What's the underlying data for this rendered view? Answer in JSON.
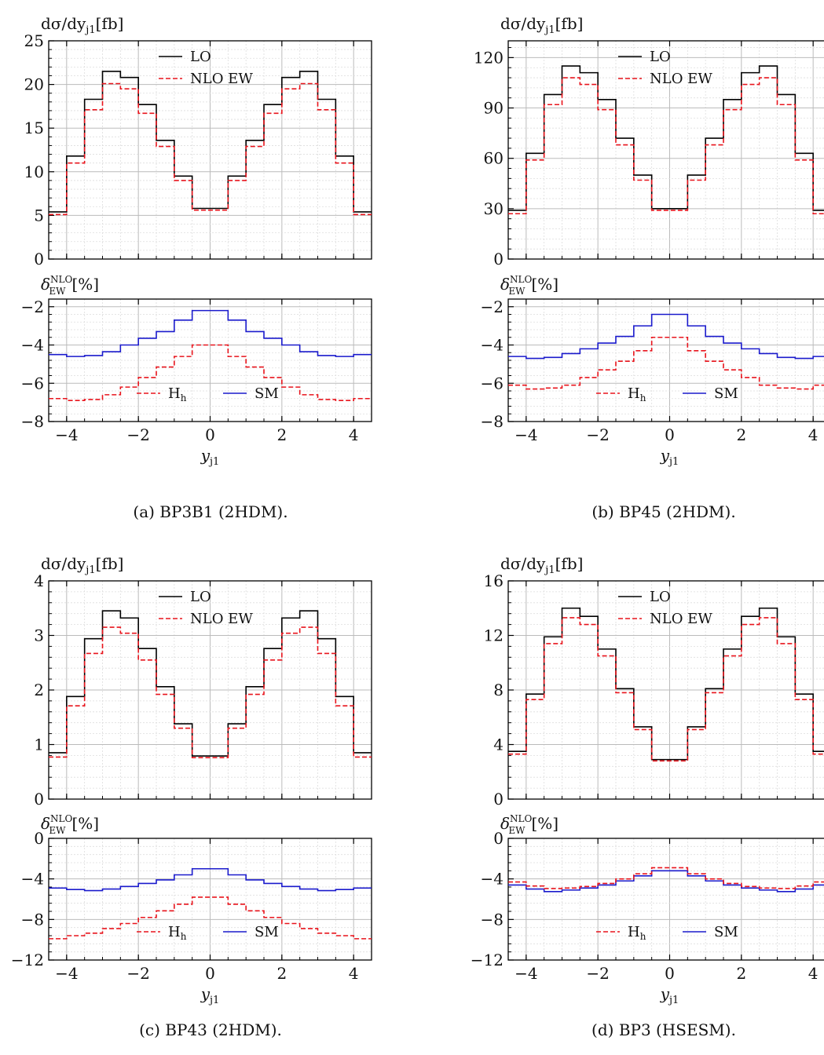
{
  "figure": {
    "upper_ylabel": "dσ/dy",
    "upper_ylabel_sub": "j1",
    "upper_ylabel_unit": "[fb]",
    "lower_ylabel": "δ",
    "lower_ylabel_sup": "NLO",
    "lower_ylabel_sub": "EW",
    "lower_ylabel_unit": "[%]",
    "xlabel": "y",
    "xlabel_sub": "j1",
    "legend_upper": [
      "LO",
      "NLO EW"
    ],
    "legend_lower_h": "H",
    "legend_lower_h_sub": "h",
    "legend_lower_sm": "SM",
    "colors": {
      "lo": "#000000",
      "nlo": "#e8141c",
      "sm": "#1a1acc",
      "hh": "#e8141c"
    }
  },
  "chart_data": [
    {
      "type": "line",
      "panel": "a",
      "caption": "(a) BP3B1 (2HDM).",
      "x_edges": [
        -4.5,
        -4,
        -3.5,
        -3,
        -2.5,
        -2,
        -1.5,
        -1,
        -0.5,
        0.5,
        1,
        1.5,
        2,
        2.5,
        3,
        3.5,
        4,
        4.5
      ],
      "xlim": [
        -4.5,
        4.5
      ],
      "xticks": [
        -4,
        -2,
        0,
        2,
        4
      ],
      "upper": {
        "ylim": [
          0,
          25
        ],
        "yticks": [
          0,
          5,
          10,
          15,
          20,
          25
        ],
        "series": [
          {
            "name": "LO",
            "values": [
              5.4,
              11.8,
              18.3,
              21.5,
              20.8,
              17.7,
              13.6,
              9.5,
              5.8,
              9.5,
              13.6,
              17.7,
              20.8,
              21.5,
              18.3,
              11.8,
              5.4
            ]
          },
          {
            "name": "NLO EW",
            "values": [
              5.1,
              11.0,
              17.1,
              20.1,
              19.5,
              16.7,
              12.9,
              9.0,
              5.6,
              9.0,
              12.9,
              16.7,
              19.5,
              20.1,
              17.1,
              11.0,
              5.1
            ]
          }
        ]
      },
      "lower": {
        "ylim": [
          -8,
          -1.6
        ],
        "yticks": [
          -8,
          -6,
          -4,
          -2
        ],
        "series": [
          {
            "name": "SM",
            "values": [
              -4.5,
              -4.6,
              -4.55,
              -4.35,
              -4.0,
              -3.65,
              -3.3,
              -2.7,
              -2.2,
              -2.7,
              -3.3,
              -3.65,
              -4.0,
              -4.35,
              -4.55,
              -4.6,
              -4.5
            ]
          },
          {
            "name": "H_h",
            "values": [
              -6.8,
              -6.9,
              -6.85,
              -6.6,
              -6.2,
              -5.7,
              -5.15,
              -4.6,
              -4.0,
              -4.6,
              -5.15,
              -5.7,
              -6.2,
              -6.6,
              -6.85,
              -6.9,
              -6.8
            ]
          }
        ]
      }
    },
    {
      "type": "line",
      "panel": "b",
      "caption": "(b) BP45 (2HDM).",
      "x_edges": [
        -4.5,
        -4,
        -3.5,
        -3,
        -2.5,
        -2,
        -1.5,
        -1,
        -0.5,
        0.5,
        1,
        1.5,
        2,
        2.5,
        3,
        3.5,
        4,
        4.5
      ],
      "xlim": [
        -4.5,
        4.5
      ],
      "xticks": [
        -4,
        -2,
        0,
        2,
        4
      ],
      "upper": {
        "ylim": [
          0,
          130
        ],
        "yticks": [
          0,
          30,
          60,
          90,
          120
        ],
        "series": [
          {
            "name": "LO",
            "values": [
              29,
              63,
              98,
              115,
              111,
              95,
              72,
              50,
              30,
              50,
              72,
              95,
              111,
              115,
              98,
              63,
              29
            ]
          },
          {
            "name": "NLO EW",
            "values": [
              27,
              59,
              92,
              108,
              104,
              89,
              68,
              47,
              29,
              47,
              68,
              89,
              104,
              108,
              92,
              59,
              27
            ]
          }
        ]
      },
      "lower": {
        "ylim": [
          -8,
          -1.6
        ],
        "yticks": [
          -8,
          -6,
          -4,
          -2
        ],
        "series": [
          {
            "name": "SM",
            "values": [
              -4.6,
              -4.7,
              -4.65,
              -4.45,
              -4.2,
              -3.9,
              -3.55,
              -3.0,
              -2.4,
              -3.0,
              -3.55,
              -3.9,
              -4.2,
              -4.45,
              -4.65,
              -4.7,
              -4.6
            ]
          },
          {
            "name": "H_h",
            "values": [
              -6.1,
              -6.3,
              -6.25,
              -6.1,
              -5.7,
              -5.3,
              -4.85,
              -4.3,
              -3.6,
              -4.3,
              -4.85,
              -5.3,
              -5.7,
              -6.1,
              -6.25,
              -6.3,
              -6.1
            ]
          }
        ]
      }
    },
    {
      "type": "line",
      "panel": "c",
      "caption": "(c) BP43 (2HDM).",
      "x_edges": [
        -4.5,
        -4,
        -3.5,
        -3,
        -2.5,
        -2,
        -1.5,
        -1,
        -0.5,
        0.5,
        1,
        1.5,
        2,
        2.5,
        3,
        3.5,
        4,
        4.5
      ],
      "xlim": [
        -4.5,
        4.5
      ],
      "xticks": [
        -4,
        -2,
        0,
        2,
        4
      ],
      "upper": {
        "ylim": [
          0,
          4
        ],
        "yticks": [
          0,
          1,
          2,
          3,
          4
        ],
        "series": [
          {
            "name": "LO",
            "values": [
              0.85,
              1.88,
              2.94,
              3.45,
              3.32,
              2.76,
              2.06,
              1.38,
              0.79,
              1.38,
              2.06,
              2.76,
              3.32,
              3.45,
              2.94,
              1.88,
              0.85
            ]
          },
          {
            "name": "NLO EW",
            "values": [
              0.77,
              1.71,
              2.67,
              3.15,
              3.04,
              2.55,
              1.92,
              1.3,
              0.76,
              1.3,
              1.92,
              2.55,
              3.04,
              3.15,
              2.67,
              1.71,
              0.77
            ]
          }
        ]
      },
      "lower": {
        "ylim": [
          -12,
          0
        ],
        "yticks": [
          -12,
          -8,
          -4,
          0
        ],
        "series": [
          {
            "name": "SM",
            "values": [
              -4.9,
              -5.05,
              -5.15,
              -5.0,
              -4.75,
              -4.45,
              -4.1,
              -3.6,
              -3.0,
              -3.6,
              -4.1,
              -4.45,
              -4.75,
              -5.0,
              -5.15,
              -5.05,
              -4.9
            ]
          },
          {
            "name": "H_h",
            "values": [
              -9.9,
              -9.6,
              -9.35,
              -8.9,
              -8.4,
              -7.8,
              -7.15,
              -6.5,
              -5.8,
              -6.5,
              -7.15,
              -7.8,
              -8.4,
              -8.9,
              -9.35,
              -9.6,
              -9.9
            ]
          }
        ]
      }
    },
    {
      "type": "line",
      "panel": "d",
      "caption": "(d) BP3 (HSESM).",
      "x_edges": [
        -4.5,
        -4,
        -3.5,
        -3,
        -2.5,
        -2,
        -1.5,
        -1,
        -0.5,
        0.5,
        1,
        1.5,
        2,
        2.5,
        3,
        3.5,
        4,
        4.5
      ],
      "xlim": [
        -4.5,
        4.5
      ],
      "xticks": [
        -4,
        -2,
        0,
        2,
        4
      ],
      "upper": {
        "ylim": [
          0,
          16
        ],
        "yticks": [
          0,
          4,
          8,
          12,
          16
        ],
        "series": [
          {
            "name": "LO",
            "values": [
              3.5,
              7.7,
              11.9,
              14.0,
              13.4,
              11.0,
              8.1,
              5.3,
              2.9,
              5.3,
              8.1,
              11.0,
              13.4,
              14.0,
              11.9,
              7.7,
              3.5
            ]
          },
          {
            "name": "NLO EW",
            "values": [
              3.3,
              7.3,
              11.4,
              13.3,
              12.8,
              10.5,
              7.8,
              5.1,
              2.8,
              5.1,
              7.8,
              10.5,
              12.8,
              13.3,
              11.4,
              7.3,
              3.3
            ]
          }
        ]
      },
      "lower": {
        "ylim": [
          -12,
          0
        ],
        "yticks": [
          -12,
          -8,
          -4,
          0
        ],
        "series": [
          {
            "name": "SM",
            "values": [
              -4.6,
              -5.0,
              -5.25,
              -5.1,
              -4.9,
              -4.6,
              -4.2,
              -3.7,
              -3.2,
              -3.7,
              -4.2,
              -4.6,
              -4.9,
              -5.1,
              -5.25,
              -5.0,
              -4.6
            ]
          },
          {
            "name": "H_h",
            "values": [
              -4.3,
              -4.7,
              -4.95,
              -4.9,
              -4.75,
              -4.45,
              -4.0,
              -3.5,
              -2.9,
              -3.5,
              -4.0,
              -4.45,
              -4.75,
              -4.9,
              -4.95,
              -4.7,
              -4.3
            ]
          }
        ]
      }
    }
  ]
}
